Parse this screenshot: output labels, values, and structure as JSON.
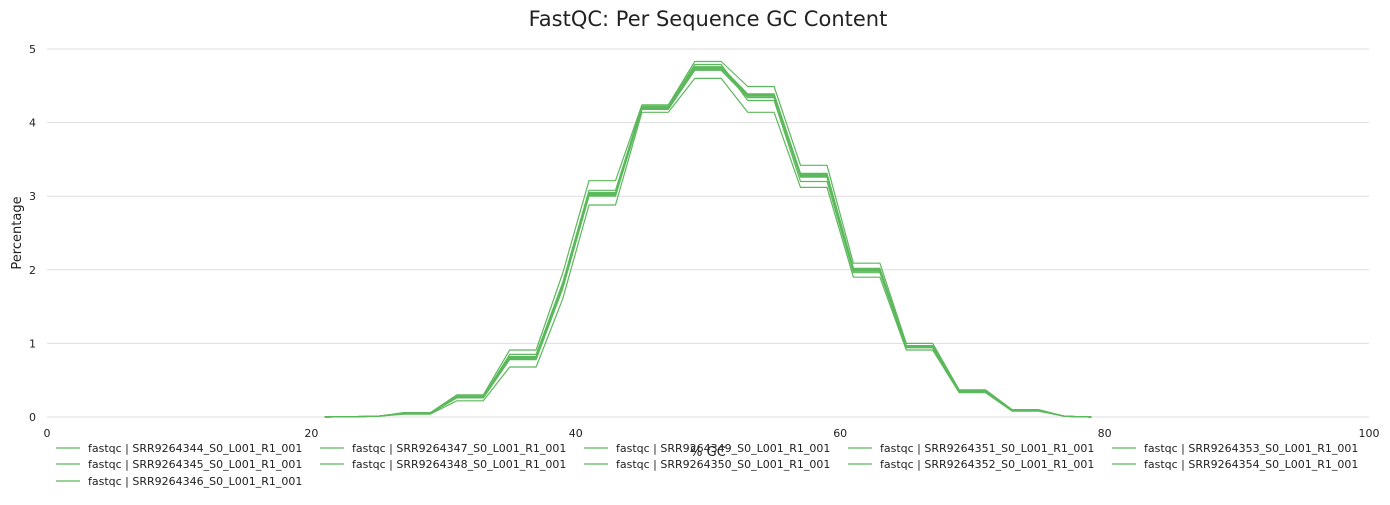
{
  "chart_data": {
    "type": "line",
    "title": "FastQC: Per Sequence GC Content",
    "xlabel": "% GC",
    "ylabel": "Percentage",
    "xlim": [
      0,
      100
    ],
    "ylim": [
      0,
      5
    ],
    "xticks": [
      0,
      20,
      40,
      60,
      80,
      100
    ],
    "yticks": [
      0,
      1,
      2,
      3,
      4,
      5
    ],
    "grid": "horizontal",
    "legend_position": "bottom",
    "line_color": "#5cb85c",
    "x": [
      21,
      25,
      27,
      29,
      31,
      33,
      35,
      37,
      39,
      41,
      43,
      45,
      47,
      49,
      51,
      53,
      55,
      57,
      59,
      61,
      63,
      65,
      67,
      69,
      71,
      73,
      75,
      77,
      79
    ],
    "series": [
      {
        "name": "fastqc | SRR9264344_S0_L001_R1_001",
        "values": [
          0,
          0.01,
          0.05,
          0.05,
          0.27,
          0.27,
          0.8,
          0.8,
          1.77,
          3.03,
          3.03,
          4.2,
          4.2,
          4.73,
          4.73,
          4.37,
          4.37,
          3.28,
          3.28,
          2.0,
          2.0,
          0.96,
          0.96,
          0.35,
          0.35,
          0.09,
          0.09,
          0.01,
          0
        ]
      },
      {
        "name": "fastqc | SRR9264345_S0_L001_R1_001",
        "values": [
          0,
          0.01,
          0.05,
          0.05,
          0.28,
          0.28,
          0.82,
          0.82,
          1.8,
          3.05,
          3.05,
          4.22,
          4.22,
          4.75,
          4.75,
          4.38,
          4.38,
          3.3,
          3.3,
          2.01,
          2.01,
          0.97,
          0.97,
          0.36,
          0.36,
          0.09,
          0.09,
          0.01,
          0
        ]
      },
      {
        "name": "fastqc | SRR9264346_S0_L001_R1_001",
        "values": [
          0,
          0.01,
          0.05,
          0.05,
          0.26,
          0.26,
          0.79,
          0.79,
          1.75,
          3.01,
          3.01,
          4.19,
          4.19,
          4.72,
          4.72,
          4.36,
          4.36,
          3.27,
          3.27,
          1.99,
          1.99,
          0.95,
          0.95,
          0.35,
          0.35,
          0.09,
          0.09,
          0.01,
          0
        ]
      },
      {
        "name": "fastqc | SRR9264347_S0_L001_R1_001",
        "values": [
          0,
          0.01,
          0.06,
          0.06,
          0.3,
          0.3,
          0.91,
          0.91,
          1.95,
          3.21,
          3.21,
          4.24,
          4.24,
          4.83,
          4.83,
          4.49,
          4.49,
          3.42,
          3.42,
          2.09,
          2.09,
          1.0,
          1.0,
          0.37,
          0.37,
          0.1,
          0.1,
          0.01,
          0
        ]
      },
      {
        "name": "fastqc | SRR9264348_S0_L001_R1_001",
        "values": [
          0,
          0.01,
          0.04,
          0.04,
          0.22,
          0.22,
          0.68,
          0.68,
          1.6,
          2.88,
          2.88,
          4.14,
          4.14,
          4.6,
          4.6,
          4.14,
          4.14,
          3.12,
          3.12,
          1.9,
          1.9,
          0.91,
          0.91,
          0.33,
          0.33,
          0.08,
          0.08,
          0.01,
          0
        ]
      },
      {
        "name": "fastqc | SRR9264349_S0_L001_R1_001",
        "values": [
          0,
          0.01,
          0.05,
          0.05,
          0.27,
          0.27,
          0.81,
          0.81,
          1.78,
          3.04,
          3.04,
          4.21,
          4.21,
          4.74,
          4.74,
          4.37,
          4.37,
          3.29,
          3.29,
          2.0,
          2.0,
          0.96,
          0.96,
          0.35,
          0.35,
          0.09,
          0.09,
          0.01,
          0
        ]
      },
      {
        "name": "fastqc | SRR9264350_S0_L001_R1_001",
        "values": [
          0,
          0.01,
          0.05,
          0.05,
          0.28,
          0.28,
          0.85,
          0.85,
          1.82,
          3.08,
          3.08,
          4.22,
          4.22,
          4.79,
          4.79,
          4.3,
          4.3,
          3.2,
          3.2,
          1.96,
          1.96,
          0.94,
          0.94,
          0.34,
          0.34,
          0.09,
          0.09,
          0.01,
          0
        ]
      },
      {
        "name": "fastqc | SRR9264351_S0_L001_R1_001",
        "values": [
          0,
          0.01,
          0.05,
          0.05,
          0.26,
          0.26,
          0.78,
          0.78,
          1.74,
          3.0,
          3.0,
          4.18,
          4.18,
          4.71,
          4.71,
          4.34,
          4.34,
          3.26,
          3.26,
          1.98,
          1.98,
          0.95,
          0.95,
          0.34,
          0.34,
          0.09,
          0.09,
          0.01,
          0
        ]
      },
      {
        "name": "fastqc | SRR9264352_S0_L001_R1_001",
        "values": [
          0,
          0.01,
          0.05,
          0.05,
          0.27,
          0.27,
          0.8,
          0.8,
          1.76,
          3.02,
          3.02,
          4.2,
          4.2,
          4.74,
          4.74,
          4.38,
          4.38,
          3.28,
          3.28,
          2.0,
          2.0,
          0.96,
          0.96,
          0.35,
          0.35,
          0.09,
          0.09,
          0.01,
          0
        ]
      },
      {
        "name": "fastqc | SRR9264353_S0_L001_R1_001",
        "values": [
          0,
          0.01,
          0.05,
          0.05,
          0.28,
          0.28,
          0.82,
          0.82,
          1.79,
          3.04,
          3.04,
          4.21,
          4.21,
          4.76,
          4.76,
          4.39,
          4.39,
          3.31,
          3.31,
          2.02,
          2.02,
          0.97,
          0.97,
          0.36,
          0.36,
          0.09,
          0.09,
          0.01,
          0
        ]
      },
      {
        "name": "fastqc | SRR9264354_S0_L001_R1_001",
        "values": [
          0,
          0.01,
          0.05,
          0.05,
          0.27,
          0.27,
          0.8,
          0.8,
          1.77,
          3.03,
          3.03,
          4.2,
          4.2,
          4.73,
          4.73,
          4.36,
          4.36,
          3.28,
          3.28,
          2.0,
          2.0,
          0.96,
          0.96,
          0.35,
          0.35,
          0.09,
          0.09,
          0.01,
          0
        ]
      }
    ]
  }
}
